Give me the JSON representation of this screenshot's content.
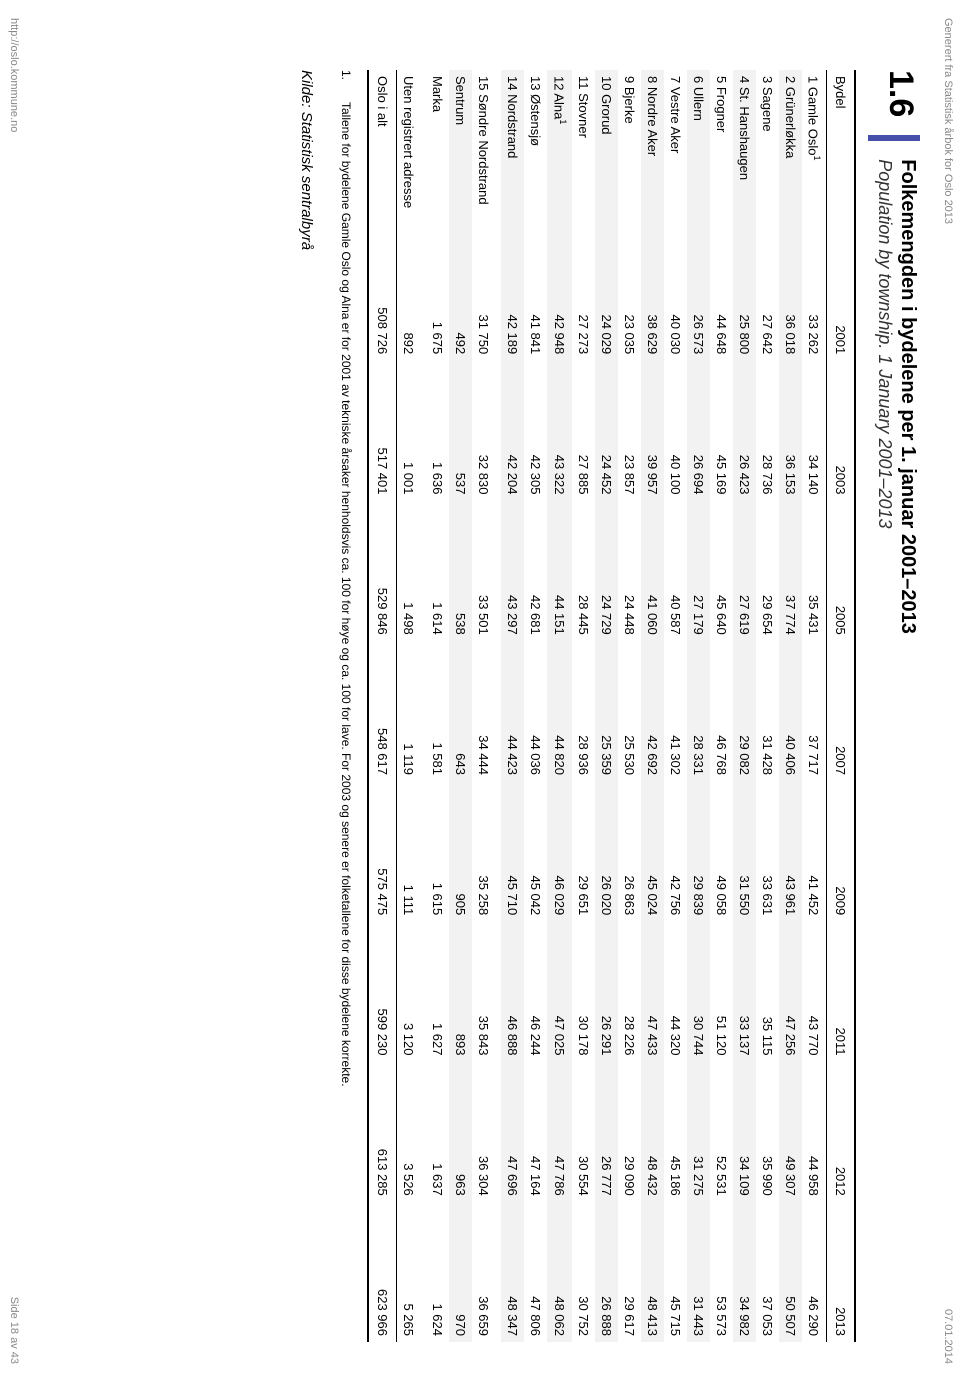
{
  "header": {
    "left": "Generert fra Statistisk årbok for Oslo 2013",
    "right": "07.01.2014"
  },
  "footer": {
    "left": "http://oslo.kommune.no",
    "right": "Side 18 av 43"
  },
  "section_number": "1.6",
  "title_main": "Folkemengden i bydelene per 1. januar 2001–2013",
  "title_sub": "Population by township. 1 January 2001–2013",
  "table": {
    "col_header_first": "Bydel",
    "years": [
      "2001",
      "2003",
      "2005",
      "2007",
      "2009",
      "2011",
      "2012",
      "2013"
    ],
    "rows": [
      {
        "label": "1 Gamle Oslo",
        "sup": "1",
        "alt": false,
        "values": [
          "33 262",
          "34 140",
          "35 431",
          "37 717",
          "41 452",
          "43 770",
          "44 958",
          "46 290"
        ]
      },
      {
        "label": "2 Grünerløkka",
        "alt": true,
        "values": [
          "36 018",
          "36 153",
          "37 774",
          "40 406",
          "43 961",
          "47 256",
          "49 307",
          "50 507"
        ]
      },
      {
        "label": "3 Sagene",
        "alt": false,
        "values": [
          "27 642",
          "28 736",
          "29 654",
          "31 428",
          "33 631",
          "35 115",
          "35 990",
          "37 053"
        ]
      },
      {
        "label": "4 St. Hanshaugen",
        "alt": true,
        "values": [
          "25 800",
          "26 423",
          "27 619",
          "29 082",
          "31 550",
          "33 137",
          "34 109",
          "34 982"
        ]
      },
      {
        "label": "5 Frogner",
        "alt": false,
        "values": [
          "44 648",
          "45 169",
          "45 640",
          "46 768",
          "49 058",
          "51 120",
          "52 531",
          "53 573"
        ]
      },
      {
        "label": "6 Ullern",
        "alt": true,
        "values": [
          "26 573",
          "26 694",
          "27 179",
          "28 331",
          "29 839",
          "30 744",
          "31 275",
          "31 443"
        ]
      },
      {
        "label": "7 Vestre Aker",
        "alt": false,
        "values": [
          "40 030",
          "40 100",
          "40 587",
          "41 302",
          "42 756",
          "44 320",
          "45 186",
          "45 715"
        ]
      },
      {
        "label": "8 Nordre Aker",
        "alt": true,
        "values": [
          "38 629",
          "39 957",
          "41 060",
          "42 692",
          "45 024",
          "47 433",
          "48 432",
          "48 413"
        ]
      },
      {
        "label": "9 Bjerke",
        "alt": false,
        "values": [
          "23 035",
          "23 857",
          "24 448",
          "25 530",
          "26 863",
          "28 226",
          "29 090",
          "29 617"
        ]
      },
      {
        "label": "10 Grorud",
        "alt": true,
        "values": [
          "24 029",
          "24 452",
          "24 729",
          "25 359",
          "26 020",
          "26 291",
          "26 777",
          "26 888"
        ]
      },
      {
        "label": "11 Stovner",
        "alt": false,
        "values": [
          "27 273",
          "27 885",
          "28 445",
          "28 936",
          "29 651",
          "30 178",
          "30 554",
          "30 752"
        ]
      },
      {
        "label": "12 Alna",
        "sup": "1",
        "alt": true,
        "values": [
          "42 948",
          "43 322",
          "44 151",
          "44 820",
          "46 029",
          "47 025",
          "47 786",
          "48 062"
        ]
      },
      {
        "label": "13 Østensjø",
        "alt": false,
        "values": [
          "41 841",
          "42 305",
          "42 681",
          "44 036",
          "45 042",
          "46 244",
          "47 164",
          "47 806"
        ]
      },
      {
        "label": "14 Nordstrand",
        "alt": true,
        "values": [
          "42 189",
          "42 204",
          "43 297",
          "44 423",
          "45 710",
          "46 888",
          "47 696",
          "48 347"
        ]
      },
      {
        "label": "15 Søndre Nordstrand",
        "alt": false,
        "gap": true,
        "values": [
          "31 750",
          "32 830",
          "33 501",
          "34 444",
          "35 258",
          "35 843",
          "36 304",
          "36 659"
        ]
      },
      {
        "label": "Sentrum",
        "alt": true,
        "values": [
          "492",
          "537",
          "538",
          "643",
          "905",
          "893",
          "963",
          "970"
        ]
      },
      {
        "label": "Marka",
        "alt": false,
        "values": [
          "1 675",
          "1 636",
          "1 614",
          "1 581",
          "1 615",
          "1 627",
          "1 637",
          "1 624"
        ]
      },
      {
        "label": "Uten registrert adresse",
        "alt": false,
        "gap": true,
        "values": [
          "892",
          "1 001",
          "1 498",
          "1 119",
          "1 111",
          "3 120",
          "3 526",
          "5 265"
        ]
      }
    ],
    "total": {
      "label": "Oslo i alt",
      "values": [
        "508 726",
        "517 401",
        "529 846",
        "548 617",
        "575 475",
        "599 230",
        "613 285",
        "623 966"
      ]
    }
  },
  "footnote": {
    "num": "1.",
    "text": "Tallene for bydelene Gamle Oslo og Alna er for 2001 av tekniske årsaker henholdsvis ca. 100 for høye og ca. 100 for lave. For 2003 og senere er folketallene for disse bydelene korrekte."
  },
  "source": "Kilde: Statistisk sentralbyrå"
}
